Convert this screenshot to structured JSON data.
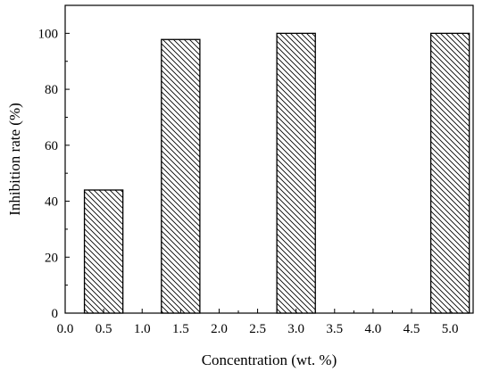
{
  "chart_data": {
    "type": "bar",
    "xlabel": "Concentration (wt. %)",
    "ylabel": "Inhibition rate (%)",
    "xlim": [
      0.0,
      5.3
    ],
    "ylim": [
      0,
      110
    ],
    "grid": false,
    "x_ticks": [
      "0.0",
      "0.5",
      "1.0",
      "1.5",
      "2.0",
      "2.5",
      "3.0",
      "3.5",
      "4.0",
      "4.5",
      "5.0"
    ],
    "y_ticks": [
      "0",
      "20",
      "40",
      "60",
      "80",
      "100"
    ],
    "bar_width": 0.5,
    "bars": [
      {
        "x": 0.5,
        "value": 44
      },
      {
        "x": 1.5,
        "value": 97.8
      },
      {
        "x": 3.0,
        "value": 100
      },
      {
        "x": 5.0,
        "value": 100
      }
    ],
    "bar_fill": "diagonal-hatch",
    "colors": {
      "bar_edge": "#000000",
      "hatch": "#000000",
      "background": "#ffffff"
    }
  }
}
